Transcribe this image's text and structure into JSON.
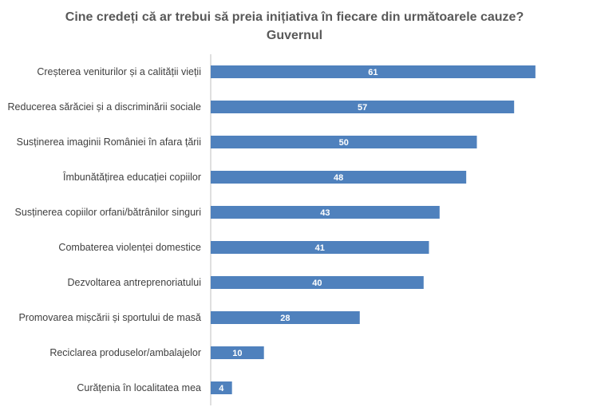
{
  "chart_data": {
    "type": "bar",
    "orientation": "horizontal",
    "title": "Cine credeți că ar trebui să preia inițiativa în fiecare din următoarele cauze?",
    "subtitle": "Guvernul",
    "categories": [
      "Creșterea veniturilor și a calității vieții",
      "Reducerea sărăciei și a discriminării sociale",
      "Susținerea imaginii României în afara țării",
      "Îmbunătățirea educației copiilor",
      "Susținerea copiilor orfani/bătrânilor singuri",
      "Combaterea violenței domestice",
      "Dezvoltarea antreprenoriatului",
      "Promovarea mișcării și sportului de masă",
      "Reciclarea produselor/ambalajelor",
      "Curățenia în localitatea mea"
    ],
    "values": [
      61,
      57,
      50,
      48,
      43,
      41,
      40,
      28,
      10,
      4
    ],
    "xlim": [
      0,
      65
    ],
    "bar_color": "#4f81bd",
    "label_color": "#ffffff",
    "grid": false,
    "legend": false
  }
}
